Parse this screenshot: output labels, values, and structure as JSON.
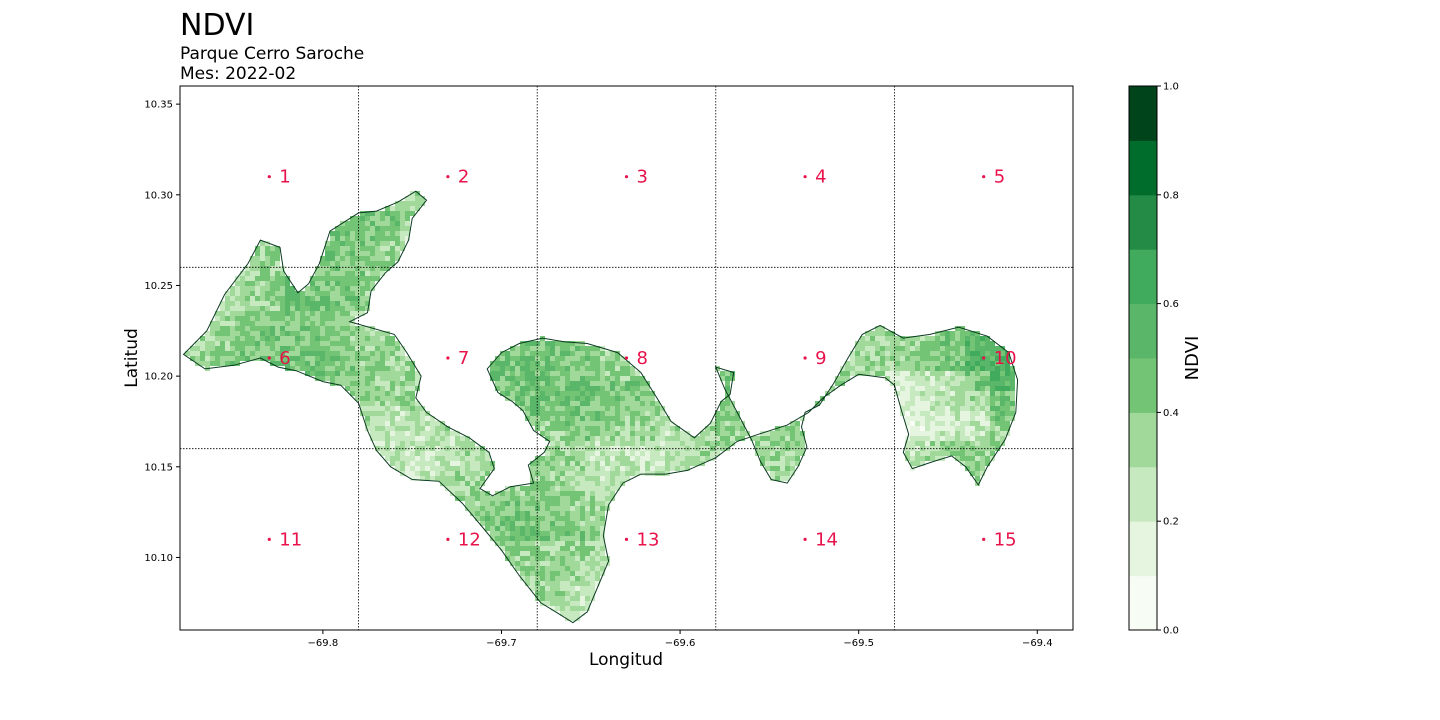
{
  "title": "NDVI",
  "subtitle": "Parque Cerro Saroche",
  "month_label": "Mes: 2022-02",
  "map": {
    "xlabel": "Longitud",
    "ylabel": "Latitud",
    "xlim": [
      -69.88,
      -69.38
    ],
    "ylim": [
      10.06,
      10.36
    ],
    "xticks": [
      {
        "value": -69.8,
        "label": "−69.8"
      },
      {
        "value": -69.7,
        "label": "−69.7"
      },
      {
        "value": -69.6,
        "label": "−69.6"
      },
      {
        "value": -69.5,
        "label": "−69.5"
      },
      {
        "value": -69.4,
        "label": "−69.4"
      }
    ],
    "yticks": [
      {
        "value": 10.1,
        "label": "10.10"
      },
      {
        "value": 10.15,
        "label": "10.15"
      },
      {
        "value": 10.2,
        "label": "10.20"
      },
      {
        "value": 10.25,
        "label": "10.25"
      },
      {
        "value": 10.3,
        "label": "10.30"
      },
      {
        "value": 10.35,
        "label": "10.35"
      }
    ],
    "grid_lon": [
      -69.78,
      -69.68,
      -69.58,
      -69.48
    ],
    "grid_lat": [
      10.16,
      10.26
    ],
    "cells": [
      {
        "id": "1",
        "lon": -69.83,
        "lat": 10.31
      },
      {
        "id": "2",
        "lon": -69.73,
        "lat": 10.31
      },
      {
        "id": "3",
        "lon": -69.63,
        "lat": 10.31
      },
      {
        "id": "4",
        "lon": -69.53,
        "lat": 10.31
      },
      {
        "id": "5",
        "lon": -69.43,
        "lat": 10.31
      },
      {
        "id": "6",
        "lon": -69.83,
        "lat": 10.21
      },
      {
        "id": "7",
        "lon": -69.73,
        "lat": 10.21
      },
      {
        "id": "8",
        "lon": -69.63,
        "lat": 10.21
      },
      {
        "id": "9",
        "lon": -69.53,
        "lat": 10.21
      },
      {
        "id": "10",
        "lon": -69.43,
        "lat": 10.21
      },
      {
        "id": "11",
        "lon": -69.83,
        "lat": 10.11
      },
      {
        "id": "12",
        "lon": -69.73,
        "lat": 10.11
      },
      {
        "id": "13",
        "lon": -69.63,
        "lat": 10.11
      },
      {
        "id": "14",
        "lon": -69.53,
        "lat": 10.11
      },
      {
        "id": "15",
        "lon": -69.43,
        "lat": 10.11
      }
    ],
    "boundary": [
      [
        -69.878,
        10.212
      ],
      [
        -69.865,
        10.225
      ],
      [
        -69.855,
        10.245
      ],
      [
        -69.842,
        10.262
      ],
      [
        -69.835,
        10.275
      ],
      [
        -69.824,
        10.271
      ],
      [
        -69.822,
        10.258
      ],
      [
        -69.814,
        10.246
      ],
      [
        -69.808,
        10.251
      ],
      [
        -69.802,
        10.262
      ],
      [
        -69.796,
        10.28
      ],
      [
        -69.78,
        10.29
      ],
      [
        -69.77,
        10.291
      ],
      [
        -69.758,
        10.296
      ],
      [
        -69.748,
        10.302
      ],
      [
        -69.742,
        10.297
      ],
      [
        -69.75,
        10.287
      ],
      [
        -69.752,
        10.275
      ],
      [
        -69.758,
        10.263
      ],
      [
        -69.765,
        10.257
      ],
      [
        -69.773,
        10.247
      ],
      [
        -69.775,
        10.235
      ],
      [
        -69.785,
        10.23
      ],
      [
        -69.76,
        10.223
      ],
      [
        -69.753,
        10.213
      ],
      [
        -69.745,
        10.2
      ],
      [
        -69.748,
        10.188
      ],
      [
        -69.742,
        10.18
      ],
      [
        -69.73,
        10.172
      ],
      [
        -69.718,
        10.166
      ],
      [
        -69.707,
        10.158
      ],
      [
        -69.704,
        10.149
      ],
      [
        -69.712,
        10.138
      ],
      [
        -69.705,
        10.134
      ],
      [
        -69.695,
        10.139
      ],
      [
        -69.682,
        10.141
      ],
      [
        -69.685,
        10.151
      ],
      [
        -69.676,
        10.158
      ],
      [
        -69.673,
        10.164
      ],
      [
        -69.682,
        10.17
      ],
      [
        -69.688,
        10.181
      ],
      [
        -69.694,
        10.186
      ],
      [
        -69.702,
        10.191
      ],
      [
        -69.708,
        10.204
      ],
      [
        -69.7,
        10.213
      ],
      [
        -69.69,
        10.218
      ],
      [
        -69.677,
        10.221
      ],
      [
        -69.665,
        10.219
      ],
      [
        -69.652,
        10.218
      ],
      [
        -69.635,
        10.213
      ],
      [
        -69.622,
        10.202
      ],
      [
        -69.613,
        10.188
      ],
      [
        -69.605,
        10.175
      ],
      [
        -69.592,
        10.166
      ],
      [
        -69.583,
        10.174
      ],
      [
        -69.577,
        10.186
      ],
      [
        -69.572,
        10.19
      ],
      [
        -69.57,
        10.202
      ],
      [
        -69.58,
        10.205
      ],
      [
        -69.575,
        10.193
      ],
      [
        -69.568,
        10.18
      ],
      [
        -69.56,
        10.165
      ],
      [
        -69.555,
        10.153
      ],
      [
        -69.549,
        10.143
      ],
      [
        -69.54,
        10.141
      ],
      [
        -69.534,
        10.15
      ],
      [
        -69.529,
        10.161
      ],
      [
        -69.532,
        10.172
      ],
      [
        -69.53,
        10.18
      ],
      [
        -69.522,
        10.184
      ],
      [
        -69.514,
        10.196
      ],
      [
        -69.506,
        10.21
      ],
      [
        -69.498,
        10.223
      ],
      [
        -69.488,
        10.228
      ],
      [
        -69.475,
        10.221
      ],
      [
        -69.46,
        10.223
      ],
      [
        -69.444,
        10.227
      ],
      [
        -69.428,
        10.222
      ],
      [
        -69.416,
        10.213
      ],
      [
        -69.411,
        10.198
      ],
      [
        -69.412,
        10.18
      ],
      [
        -69.418,
        10.165
      ],
      [
        -69.428,
        10.15
      ],
      [
        -69.433,
        10.14
      ],
      [
        -69.44,
        10.15
      ],
      [
        -69.448,
        10.156
      ],
      [
        -69.458,
        10.153
      ],
      [
        -69.47,
        10.149
      ],
      [
        -69.475,
        10.158
      ],
      [
        -69.472,
        10.168
      ],
      [
        -69.476,
        10.181
      ],
      [
        -69.48,
        10.195
      ],
      [
        -69.485,
        10.199
      ],
      [
        -69.5,
        10.201
      ],
      [
        -69.51,
        10.195
      ],
      [
        -69.52,
        10.188
      ],
      [
        -69.528,
        10.18
      ],
      [
        -69.54,
        10.173
      ],
      [
        -69.556,
        10.168
      ],
      [
        -69.568,
        10.164
      ],
      [
        -69.58,
        10.155
      ],
      [
        -69.596,
        10.148
      ],
      [
        -69.608,
        10.146
      ],
      [
        -69.622,
        10.146
      ],
      [
        -69.632,
        10.141
      ],
      [
        -69.64,
        10.129
      ],
      [
        -69.643,
        10.112
      ],
      [
        -69.64,
        10.098
      ],
      [
        -69.646,
        10.084
      ],
      [
        -69.652,
        10.07
      ],
      [
        -69.66,
        10.064
      ],
      [
        -69.668,
        10.069
      ],
      [
        -69.678,
        10.075
      ],
      [
        -69.69,
        10.09
      ],
      [
        -69.7,
        10.104
      ],
      [
        -69.71,
        10.116
      ],
      [
        -69.722,
        10.13
      ],
      [
        -69.735,
        10.142
      ],
      [
        -69.75,
        10.143
      ],
      [
        -69.762,
        10.15
      ],
      [
        -69.77,
        10.159
      ],
      [
        -69.775,
        10.17
      ],
      [
        -69.78,
        10.185
      ],
      [
        -69.79,
        10.195
      ],
      [
        -69.8,
        10.197
      ],
      [
        -69.815,
        10.203
      ],
      [
        -69.825,
        10.205
      ],
      [
        -69.835,
        10.21
      ],
      [
        -69.85,
        10.206
      ],
      [
        -69.866,
        10.204
      ],
      [
        -69.878,
        10.212
      ]
    ]
  },
  "colorbar": {
    "label": "NDVI",
    "range": [
      0,
      1
    ],
    "ticks": [
      {
        "value": 0.0,
        "label": "0.0"
      },
      {
        "value": 0.2,
        "label": "0.2"
      },
      {
        "value": 0.4,
        "label": "0.4"
      },
      {
        "value": 0.6,
        "label": "0.6"
      },
      {
        "value": 0.8,
        "label": "0.8"
      },
      {
        "value": 1.0,
        "label": "1.0"
      }
    ],
    "bins": [
      "#f7fcf5",
      "#e5f5e0",
      "#c7e9c0",
      "#a1d99b",
      "#74c476",
      "#5ab769",
      "#41ab5d",
      "#238b45",
      "#006d2c",
      "#00441b"
    ]
  },
  "colors": {
    "cell_label": "#e8134b",
    "boundary": "#0a3a20",
    "grid": "#000000"
  }
}
